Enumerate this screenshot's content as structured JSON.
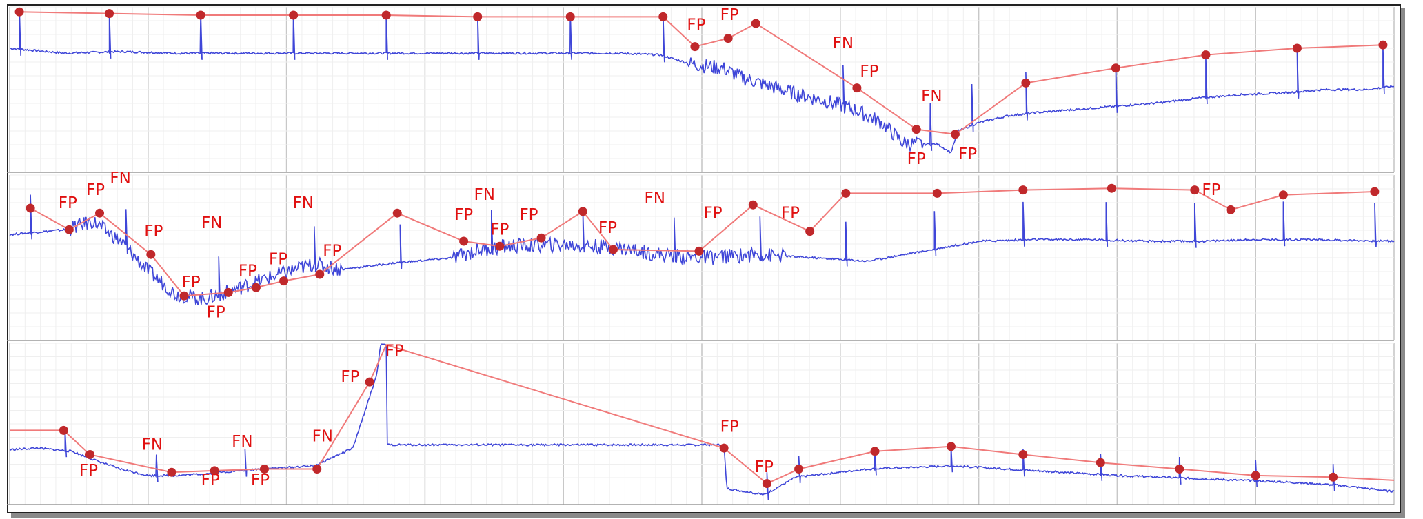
{
  "chart_data": {
    "type": "line",
    "title": "",
    "xlabel": "",
    "ylabel": "",
    "grid": true,
    "colors": {
      "signal": "#3f46d8",
      "envelope": "#f07a7a",
      "marker": "#c0282b",
      "label": "#e01010"
    },
    "strips": [
      {
        "xlim": [
          0,
          100
        ],
        "ylim": [
          0,
          100
        ],
        "baseline": [
          [
            0,
            75
          ],
          [
            4,
            72
          ],
          [
            8,
            73
          ],
          [
            12,
            72
          ],
          [
            16,
            72
          ],
          [
            20,
            72
          ],
          [
            24,
            72
          ],
          [
            28,
            72
          ],
          [
            32,
            72
          ],
          [
            36,
            72
          ],
          [
            40,
            72
          ],
          [
            44,
            72
          ],
          [
            47,
            71
          ],
          [
            49,
            66
          ],
          [
            50.5,
            64
          ],
          [
            51.5,
            63
          ],
          [
            53,
            57
          ],
          [
            55,
            52
          ],
          [
            57,
            47
          ],
          [
            59,
            43
          ],
          [
            61,
            38
          ],
          [
            63,
            30
          ],
          [
            64.5,
            18
          ],
          [
            65.5,
            17
          ],
          [
            67,
            17
          ],
          [
            68,
            12
          ],
          [
            68.5,
            25
          ],
          [
            70,
            30
          ],
          [
            72,
            34
          ],
          [
            74,
            36
          ],
          [
            77,
            38
          ],
          [
            80,
            40
          ],
          [
            83,
            42
          ],
          [
            86,
            45
          ],
          [
            89,
            47
          ],
          [
            92,
            48
          ],
          [
            95,
            50
          ],
          [
            98,
            50
          ],
          [
            100,
            52
          ]
        ],
        "beats": [
          0.7,
          7.2,
          13.8,
          20.5,
          27.2,
          33.8,
          40.5,
          47.2,
          60.2,
          66.5,
          69.5,
          73.4,
          79.9,
          86.4,
          93.0,
          99.2
        ],
        "beat_height": 25,
        "envelope": [
          [
            0.7,
            97
          ],
          [
            7.2,
            96
          ],
          [
            13.8,
            95
          ],
          [
            20.5,
            95
          ],
          [
            27.2,
            95
          ],
          [
            33.8,
            94
          ],
          [
            40.5,
            94
          ],
          [
            47.2,
            94
          ],
          [
            49.5,
            76
          ],
          [
            51.9,
            81
          ],
          [
            53.9,
            90
          ],
          [
            61.2,
            51
          ],
          [
            65.5,
            26
          ],
          [
            68.3,
            23
          ],
          [
            73.4,
            54
          ],
          [
            79.9,
            63
          ],
          [
            86.4,
            71
          ],
          [
            93.0,
            75
          ],
          [
            99.2,
            77
          ]
        ],
        "markers": [
          [
            0.7,
            97
          ],
          [
            7.2,
            96
          ],
          [
            13.8,
            95
          ],
          [
            20.5,
            95
          ],
          [
            27.2,
            95
          ],
          [
            33.8,
            94
          ],
          [
            40.5,
            94
          ],
          [
            47.2,
            94
          ],
          [
            49.5,
            76
          ],
          [
            51.9,
            81
          ],
          [
            53.9,
            90
          ],
          [
            61.2,
            51
          ],
          [
            65.5,
            26
          ],
          [
            68.3,
            23
          ],
          [
            73.4,
            54
          ],
          [
            79.9,
            63
          ],
          [
            86.4,
            71
          ],
          [
            93.0,
            75
          ],
          [
            99.2,
            77
          ]
        ],
        "labels": [
          {
            "text": "FP",
            "x": 49.6,
            "y": 86
          },
          {
            "text": "FP",
            "x": 52.0,
            "y": 92
          },
          {
            "text": "FN",
            "x": 60.2,
            "y": 75
          },
          {
            "text": "FP",
            "x": 62.1,
            "y": 58
          },
          {
            "text": "FN",
            "x": 66.6,
            "y": 43
          },
          {
            "text": "FP",
            "x": 65.5,
            "y": 5
          },
          {
            "text": "FP",
            "x": 69.2,
            "y": 8
          }
        ]
      },
      {
        "xlim": [
          0,
          100
        ],
        "ylim": [
          0,
          100
        ],
        "baseline": [
          [
            0,
            64
          ],
          [
            4,
            67
          ],
          [
            6,
            72
          ],
          [
            8,
            60
          ],
          [
            10,
            42
          ],
          [
            12,
            28
          ],
          [
            14,
            25
          ],
          [
            16,
            30
          ],
          [
            18,
            36
          ],
          [
            21,
            44
          ],
          [
            22,
            46
          ],
          [
            24,
            43
          ],
          [
            28,
            47
          ],
          [
            32,
            50
          ],
          [
            34,
            55
          ],
          [
            36,
            57
          ],
          [
            40,
            58
          ],
          [
            44,
            56
          ],
          [
            47,
            52
          ],
          [
            50,
            50
          ],
          [
            54,
            52
          ],
          [
            58,
            50
          ],
          [
            62,
            48
          ],
          [
            66,
            54
          ],
          [
            70,
            60
          ],
          [
            74,
            61
          ],
          [
            78,
            61
          ],
          [
            82,
            60
          ],
          [
            86,
            60
          ],
          [
            90,
            61
          ],
          [
            94,
            61
          ],
          [
            100,
            60
          ]
        ],
        "beats": [
          1.5,
          8.4,
          15.1,
          22.0,
          28.2,
          34.8,
          41.4,
          48.0,
          54.2,
          60.4,
          66.8,
          73.2,
          79.2,
          85.6,
          92.0,
          98.6
        ],
        "beat_height": 23,
        "envelope": [
          [
            1.5,
            80
          ],
          [
            4.3,
            67
          ],
          [
            6.5,
            77
          ],
          [
            10.2,
            52
          ],
          [
            12.6,
            27
          ],
          [
            15.8,
            29
          ],
          [
            17.8,
            32
          ],
          [
            19.8,
            36
          ],
          [
            22.4,
            40
          ],
          [
            28.0,
            77
          ],
          [
            32.8,
            60
          ],
          [
            35.4,
            57
          ],
          [
            38.4,
            62
          ],
          [
            41.4,
            78
          ],
          [
            43.6,
            55
          ],
          [
            49.8,
            54
          ],
          [
            53.7,
            82
          ],
          [
            57.8,
            66
          ],
          [
            60.4,
            89
          ],
          [
            67.0,
            89
          ],
          [
            73.2,
            91
          ],
          [
            79.6,
            92
          ],
          [
            85.6,
            91
          ],
          [
            88.2,
            79
          ],
          [
            92.0,
            88
          ],
          [
            98.6,
            90
          ]
        ],
        "markers": [
          [
            1.5,
            80
          ],
          [
            4.3,
            67
          ],
          [
            6.5,
            77
          ],
          [
            10.2,
            52
          ],
          [
            12.6,
            27
          ],
          [
            15.8,
            29
          ],
          [
            17.8,
            32
          ],
          [
            19.8,
            36
          ],
          [
            22.4,
            40
          ],
          [
            28.0,
            77
          ],
          [
            32.8,
            60
          ],
          [
            35.4,
            57
          ],
          [
            38.4,
            62
          ],
          [
            41.4,
            78
          ],
          [
            43.6,
            55
          ],
          [
            49.8,
            54
          ],
          [
            53.7,
            82
          ],
          [
            57.8,
            66
          ],
          [
            60.4,
            89
          ],
          [
            67.0,
            89
          ],
          [
            73.2,
            91
          ],
          [
            79.6,
            92
          ],
          [
            85.6,
            91
          ],
          [
            88.2,
            79
          ],
          [
            92.0,
            88
          ],
          [
            98.6,
            90
          ]
        ],
        "labels": [
          {
            "text": "FP",
            "x": 4.2,
            "y": 80
          },
          {
            "text": "FP",
            "x": 6.2,
            "y": 88
          },
          {
            "text": "FN",
            "x": 8.0,
            "y": 95
          },
          {
            "text": "FP",
            "x": 10.4,
            "y": 63
          },
          {
            "text": "FN",
            "x": 14.6,
            "y": 68
          },
          {
            "text": "FN",
            "x": 21.2,
            "y": 80
          },
          {
            "text": "FP",
            "x": 13.1,
            "y": 32
          },
          {
            "text": "FP",
            "x": 14.9,
            "y": 14
          },
          {
            "text": "FP",
            "x": 17.2,
            "y": 39
          },
          {
            "text": "FP",
            "x": 19.4,
            "y": 46
          },
          {
            "text": "FP",
            "x": 23.3,
            "y": 51
          },
          {
            "text": "FP",
            "x": 32.8,
            "y": 73
          },
          {
            "text": "FN",
            "x": 34.3,
            "y": 85
          },
          {
            "text": "FP",
            "x": 35.4,
            "y": 64
          },
          {
            "text": "FP",
            "x": 37.5,
            "y": 73
          },
          {
            "text": "FP",
            "x": 43.2,
            "y": 65
          },
          {
            "text": "FN",
            "x": 46.6,
            "y": 83
          },
          {
            "text": "FP",
            "x": 50.8,
            "y": 74
          },
          {
            "text": "FP",
            "x": 56.4,
            "y": 74
          },
          {
            "text": "FP",
            "x": 86.8,
            "y": 88
          }
        ]
      },
      {
        "xlim": [
          0,
          100
        ],
        "ylim": [
          0,
          100
        ],
        "baseline": [
          [
            0,
            34
          ],
          [
            2,
            35
          ],
          [
            4.5,
            33
          ],
          [
            6,
            28
          ],
          [
            8,
            22
          ],
          [
            10,
            18
          ],
          [
            12,
            18
          ],
          [
            14,
            19
          ],
          [
            18,
            22
          ],
          [
            22,
            24
          ],
          [
            24.8,
            35
          ],
          [
            26.5,
            80
          ],
          [
            26.8,
            99
          ],
          [
            27.2,
            99
          ],
          [
            27.2,
            37
          ],
          [
            51.6,
            37
          ],
          [
            51.8,
            10
          ],
          [
            54.5,
            6
          ],
          [
            56.8,
            17
          ],
          [
            62,
            22
          ],
          [
            68,
            24
          ],
          [
            74,
            21
          ],
          [
            80,
            18
          ],
          [
            86,
            16
          ],
          [
            92,
            14
          ],
          [
            96,
            12
          ],
          [
            100,
            8
          ]
        ],
        "beats": [
          4.0,
          10.6,
          17.0,
          54.7,
          57.0,
          62.5,
          68.0,
          73.2,
          78.8,
          84.5,
          90.0,
          95.6
        ],
        "beat_height": 13,
        "envelope": [
          [
            0,
            46
          ],
          [
            3.9,
            46
          ],
          [
            5.8,
            31
          ],
          [
            11.7,
            20
          ],
          [
            14.8,
            21
          ],
          [
            18.4,
            22
          ],
          [
            22.2,
            22
          ],
          [
            26.0,
            76
          ],
          [
            27.2,
            99
          ],
          [
            51.6,
            35
          ],
          [
            54.7,
            13
          ],
          [
            57.0,
            22
          ],
          [
            62.5,
            33
          ],
          [
            68.0,
            36
          ],
          [
            73.2,
            31
          ],
          [
            78.8,
            26
          ],
          [
            84.5,
            22
          ],
          [
            90.0,
            18
          ],
          [
            95.6,
            17
          ],
          [
            100,
            15
          ]
        ],
        "markers": [
          [
            3.9,
            46
          ],
          [
            5.8,
            31
          ],
          [
            11.7,
            20
          ],
          [
            14.8,
            21
          ],
          [
            18.4,
            22
          ],
          [
            22.2,
            22
          ],
          [
            26.0,
            76
          ],
          [
            51.6,
            35
          ],
          [
            54.7,
            13
          ],
          [
            57.0,
            22
          ],
          [
            62.5,
            33
          ],
          [
            68.0,
            36
          ],
          [
            73.2,
            31
          ],
          [
            78.8,
            26
          ],
          [
            84.5,
            22
          ],
          [
            90.0,
            18
          ],
          [
            95.6,
            17
          ]
        ],
        "labels": [
          {
            "text": "FP",
            "x": 5.7,
            "y": 18
          },
          {
            "text": "FN",
            "x": 10.3,
            "y": 34
          },
          {
            "text": "FP",
            "x": 14.5,
            "y": 12
          },
          {
            "text": "FN",
            "x": 16.8,
            "y": 36
          },
          {
            "text": "FP",
            "x": 18.1,
            "y": 12
          },
          {
            "text": "FN",
            "x": 22.6,
            "y": 39
          },
          {
            "text": "FP",
            "x": 24.6,
            "y": 76
          },
          {
            "text": "FP",
            "x": 27.8,
            "y": 92
          },
          {
            "text": "FP",
            "x": 52.0,
            "y": 45
          },
          {
            "text": "FP",
            "x": 54.5,
            "y": 20
          }
        ]
      }
    ]
  }
}
